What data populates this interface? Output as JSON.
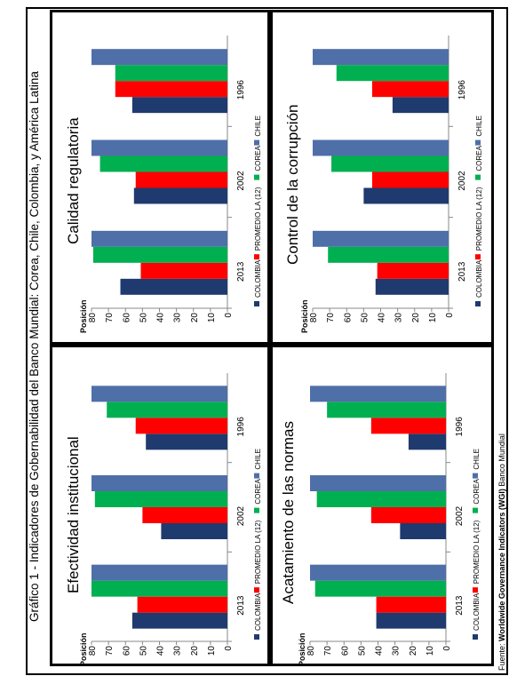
{
  "figure": {
    "title": "Gráfico 1 - Indicadores de Gobernabilidad del Banco Mundial: Corea, Chile, Colombia, y América Latina",
    "source_prefix": "Fuente: ",
    "source_bold": "Worldwide Governance Indicators (WGI)",
    "source_suffix": " Banco Mundial"
  },
  "colors": {
    "COLOMBIA": "#1f3a6e",
    "PROMEDIO LA (12)": "#ff0000",
    "COREA": "#00b050",
    "CHILE": "#4f6fa8"
  },
  "chart_data": [
    {
      "type": "bar",
      "orientation": "horizontal",
      "title": "Calidad regulatoria",
      "ylabel": "Posición",
      "categories": [
        "1996",
        "2002",
        "2013"
      ],
      "ylim": [
        0,
        80
      ],
      "ticks": [
        0,
        10,
        20,
        30,
        40,
        50,
        60,
        70,
        80
      ],
      "series": [
        {
          "name": "COLOMBIA",
          "values": [
            56,
            55,
            63
          ]
        },
        {
          "name": "PROMEDIO LA (12)",
          "values": [
            66,
            54,
            51
          ]
        },
        {
          "name": "COREA",
          "values": [
            66,
            75,
            79
          ]
        },
        {
          "name": "CHILE",
          "values": [
            80,
            80,
            80
          ]
        }
      ],
      "legend": "bottom"
    },
    {
      "type": "bar",
      "orientation": "horizontal",
      "title": "Control de la corrupción",
      "ylabel": "Posición",
      "categories": [
        "1996",
        "2002",
        "2013"
      ],
      "ylim": [
        0,
        80
      ],
      "ticks": [
        0,
        10,
        20,
        30,
        40,
        50,
        60,
        70,
        80
      ],
      "series": [
        {
          "name": "COLOMBIA",
          "values": [
            33,
            50,
            43
          ]
        },
        {
          "name": "PROMEDIO LA (12)",
          "values": [
            45,
            45,
            42
          ]
        },
        {
          "name": "COREA",
          "values": [
            66,
            69,
            71
          ]
        },
        {
          "name": "CHILE",
          "values": [
            80,
            80,
            80
          ]
        }
      ],
      "legend": "bottom"
    },
    {
      "type": "bar",
      "orientation": "horizontal",
      "title": "Efectividad institucional",
      "ylabel": "Posición",
      "categories": [
        "1996",
        "2002",
        "2013"
      ],
      "ylim": [
        0,
        80
      ],
      "ticks": [
        0,
        10,
        20,
        30,
        40,
        50,
        60,
        70,
        80
      ],
      "series": [
        {
          "name": "COLOMBIA",
          "values": [
            48,
            39,
            56
          ]
        },
        {
          "name": "PROMEDIO LA (12)",
          "values": [
            54,
            50,
            53
          ]
        },
        {
          "name": "COREA",
          "values": [
            71,
            78,
            80
          ]
        },
        {
          "name": "CHILE",
          "values": [
            80,
            80,
            80
          ]
        }
      ],
      "legend": "bottom"
    },
    {
      "type": "bar",
      "orientation": "horizontal",
      "title": "Acatamiento de las normas",
      "ylabel": "Posición",
      "categories": [
        "1996",
        "2002",
        "2013"
      ],
      "ylim": [
        0,
        80
      ],
      "ticks": [
        0,
        10,
        20,
        30,
        40,
        50,
        60,
        70,
        80
      ],
      "series": [
        {
          "name": "COLOMBIA",
          "values": [
            22,
            27,
            41
          ]
        },
        {
          "name": "PROMEDIO LA (12)",
          "values": [
            44,
            44,
            41
          ]
        },
        {
          "name": "COREA",
          "values": [
            70,
            76,
            77
          ]
        },
        {
          "name": "CHILE",
          "values": [
            80,
            80,
            80
          ]
        }
      ],
      "legend": "bottom"
    }
  ]
}
